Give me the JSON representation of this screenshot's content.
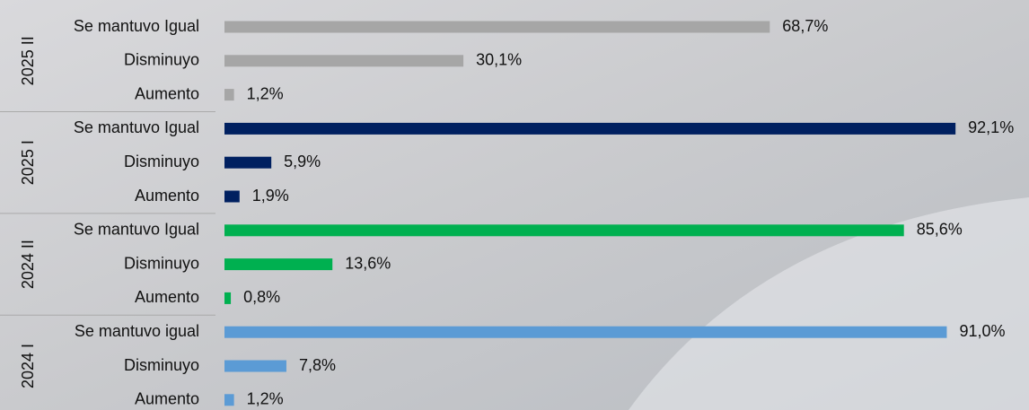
{
  "chart_data": {
    "type": "bar",
    "orientation": "horizontal",
    "groups": [
      {
        "name": "2025 II",
        "color": "#a6a6a6",
        "categories": [
          "Se mantuvo Igual",
          "Disminuyo",
          "Aumento"
        ],
        "values": [
          68.7,
          30.1,
          1.2
        ],
        "value_labels": [
          "68,7%",
          "30,1%",
          "1,2%"
        ]
      },
      {
        "name": "2025 I",
        "color": "#002060",
        "categories": [
          "Se mantuvo Igual",
          "Disminuyo",
          "Aumento"
        ],
        "values": [
          92.1,
          5.9,
          1.9
        ],
        "value_labels": [
          "92,1%",
          "5,9%",
          "1,9%"
        ]
      },
      {
        "name": "2024 II",
        "color": "#00b050",
        "categories": [
          "Se mantuvo Igual",
          "Disminuyo",
          "Aumento"
        ],
        "values": [
          85.6,
          13.6,
          0.8
        ],
        "value_labels": [
          "85,6%",
          "13,6%",
          "0,8%"
        ]
      },
      {
        "name": "2024 I",
        "color": "#5b9bd5",
        "categories": [
          "Se mantuvo igual",
          "Disminuyo",
          "Aumento"
        ],
        "values": [
          91.0,
          7.8,
          1.2
        ],
        "value_labels": [
          "91,0%",
          "7,8%",
          "1,2%"
        ]
      }
    ]
  }
}
